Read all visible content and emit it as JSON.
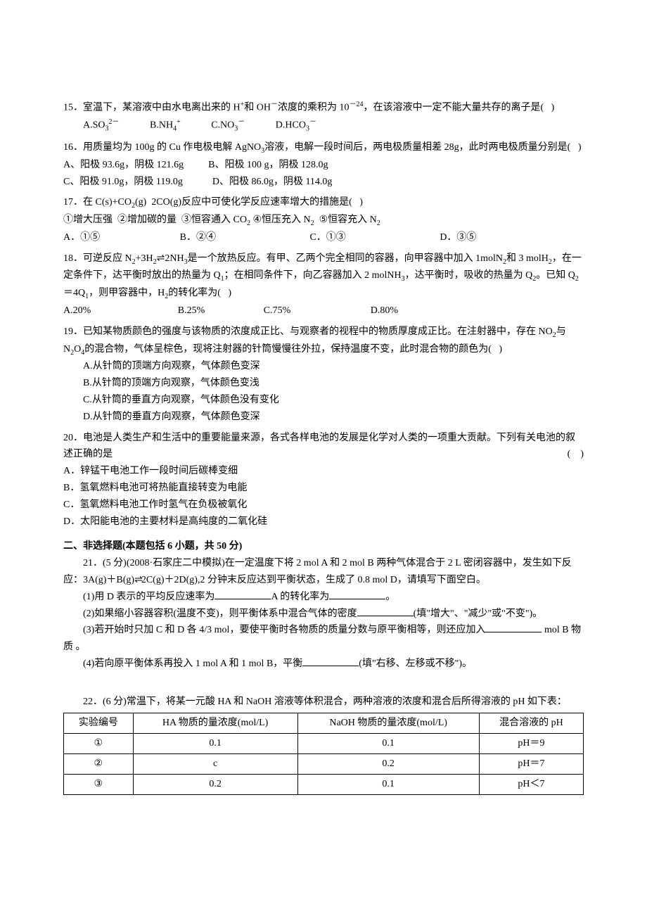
{
  "q15": {
    "stem": "15．室温下，某溶液中由水电离出来的 H⁺和 OH⁻浓度的乘积为 10⁻²⁴，在该溶液中一定不能大量共存的离子是(    )",
    "opts": [
      "A.SO₃²⁻",
      "B.NH₄⁺",
      "C.NO₃⁻",
      "D.HCO₃⁻"
    ]
  },
  "q16": {
    "stem": "16．用质量均为 100g 的 Cu 作电极电解 AgNO₃溶液，电解一段时间后，两电极质量相差 28g，此时两电极质量分别是(    )",
    "opts": [
      "A、阳极 93.6g，阴极 121.6g",
      "B、阳极 100 g，阴极 128.0g",
      "C、阳极 91.0g，阴极 119.0g",
      "D、阳极 86.0g，阴极 114.0g"
    ]
  },
  "q17": {
    "stem": "17．在 C(s)+CO₂(g)   2CO(g)反应中可使化学反应速率增大的措施是(    )",
    "sub": "①增大压强　②增加碳的量　③恒容通入 CO₂ ④恒压充入 N₂　⑤恒容充入 N₂",
    "opts": [
      "A．①⑤",
      "B．②④",
      "C．①③",
      "D．③⑤"
    ]
  },
  "q18": {
    "stem": "18．可逆反应 N₂+3H₂⇌2NH₃是一个放热反应。有甲、乙两个完全相同的容器，向甲容器中加入 1molN₂和 3 molH₂，在一定条件下，达平衡时放出的热量为 Q₁；在相同条件下，向乙容器加入 2 molNH₃，达平衡时，吸收的热量为 Q₂。已知 Q₂＝4Q₁，则甲容器中，H₂的转化率为(    )",
    "opts": [
      "A.20%",
      "B.25%",
      "C.75%",
      "D.80%"
    ]
  },
  "q19": {
    "stem": "19．已知某物质颜色的强度与该物质的浓度成正比、与观察者的视程中的物质厚度成正比。在注射器中，存在 NO₂与 N₂O₄的混合物，气体呈棕色，现将注射器的针筒慢慢往外拉，保持温度不变，此时混合物的颜色为(    )",
    "opts": [
      "A.从针筒的顶端方向观察，气体颜色变深",
      "B.从针筒的顶端方向观察，气体颜色变浅",
      "C.从针筒的垂直方向观察，气体颜色没有变化",
      "D.从针筒的垂直方向观察，气体颜色变深"
    ]
  },
  "q20": {
    "stem": "20．电池是人类生产和生活中的重要能量来源，各式各样电池的发展是化学对人类的一项重大贡献。下列有关电池的叙述正确的是",
    "opts": [
      "A．锌锰干电池工作一段时间后碳棒变细",
      "B．氢氧燃料电池可将热能直接转变为电能",
      "C．氢氧燃料电池工作时氢气在负极被氧化",
      "D．太阳能电池的主要材料是高纯度的二氧化硅"
    ]
  },
  "section2": "二、非选择题(本题包括 6 小题，共 50 分)",
  "q21": {
    "stem1": "21．(5 分)(2008·石家庄二中模拟)在一定温度下将 2 mol A 和 2 mol B 两种气体混合于 2 L 密闭容器中，发生如下反应：3A(g)＋B(g)",
    "stem2": "2C(g)＋2D(g),2 分钟末反应达到平衡状态，生成了 0.8 mol D，请填写下面空白。",
    "p1a": "(1)用 D 表示的平均反应速率为",
    "p1b": "A 的转化率为",
    "p1c": "。",
    "p2a": "(2)如果缩小容器容积(温度不变)，则平衡体系中混合气体的密度",
    "p2b": "(填\"增大\"、\"减少\"或\"不变\")。",
    "p3a": "(3)若开始时只加 C 和 D 各 4/3 mol，要使平衡时各物质的质量分数与原平衡相等，则还应加入",
    "p3b": " mol B 物质 。",
    "p4a": "(4)若向原平衡体系再投入 1 mol A 和 1 mol B，平衡",
    "p4b": "(填\"右移、左移或不移\")。"
  },
  "q22": {
    "stem": "22．(6 分)常温下，将某一元酸 HA 和 NaOH 溶液等体积混合，两种溶液的浓度和混合后所得溶液的 pH 如下表：",
    "table": {
      "columns": [
        "实验编号",
        "HA 物质的量浓度(mol/L)",
        "NaOH 物质的量浓度(mol/L)",
        "混合溶液的 pH"
      ],
      "rows": [
        [
          "①",
          "0.1",
          "0.1",
          "pH＝9"
        ],
        [
          "②",
          "c",
          "0.2",
          "pH＝7"
        ],
        [
          "③",
          "0.2",
          "0.1",
          "pH＜7"
        ]
      ]
    }
  }
}
